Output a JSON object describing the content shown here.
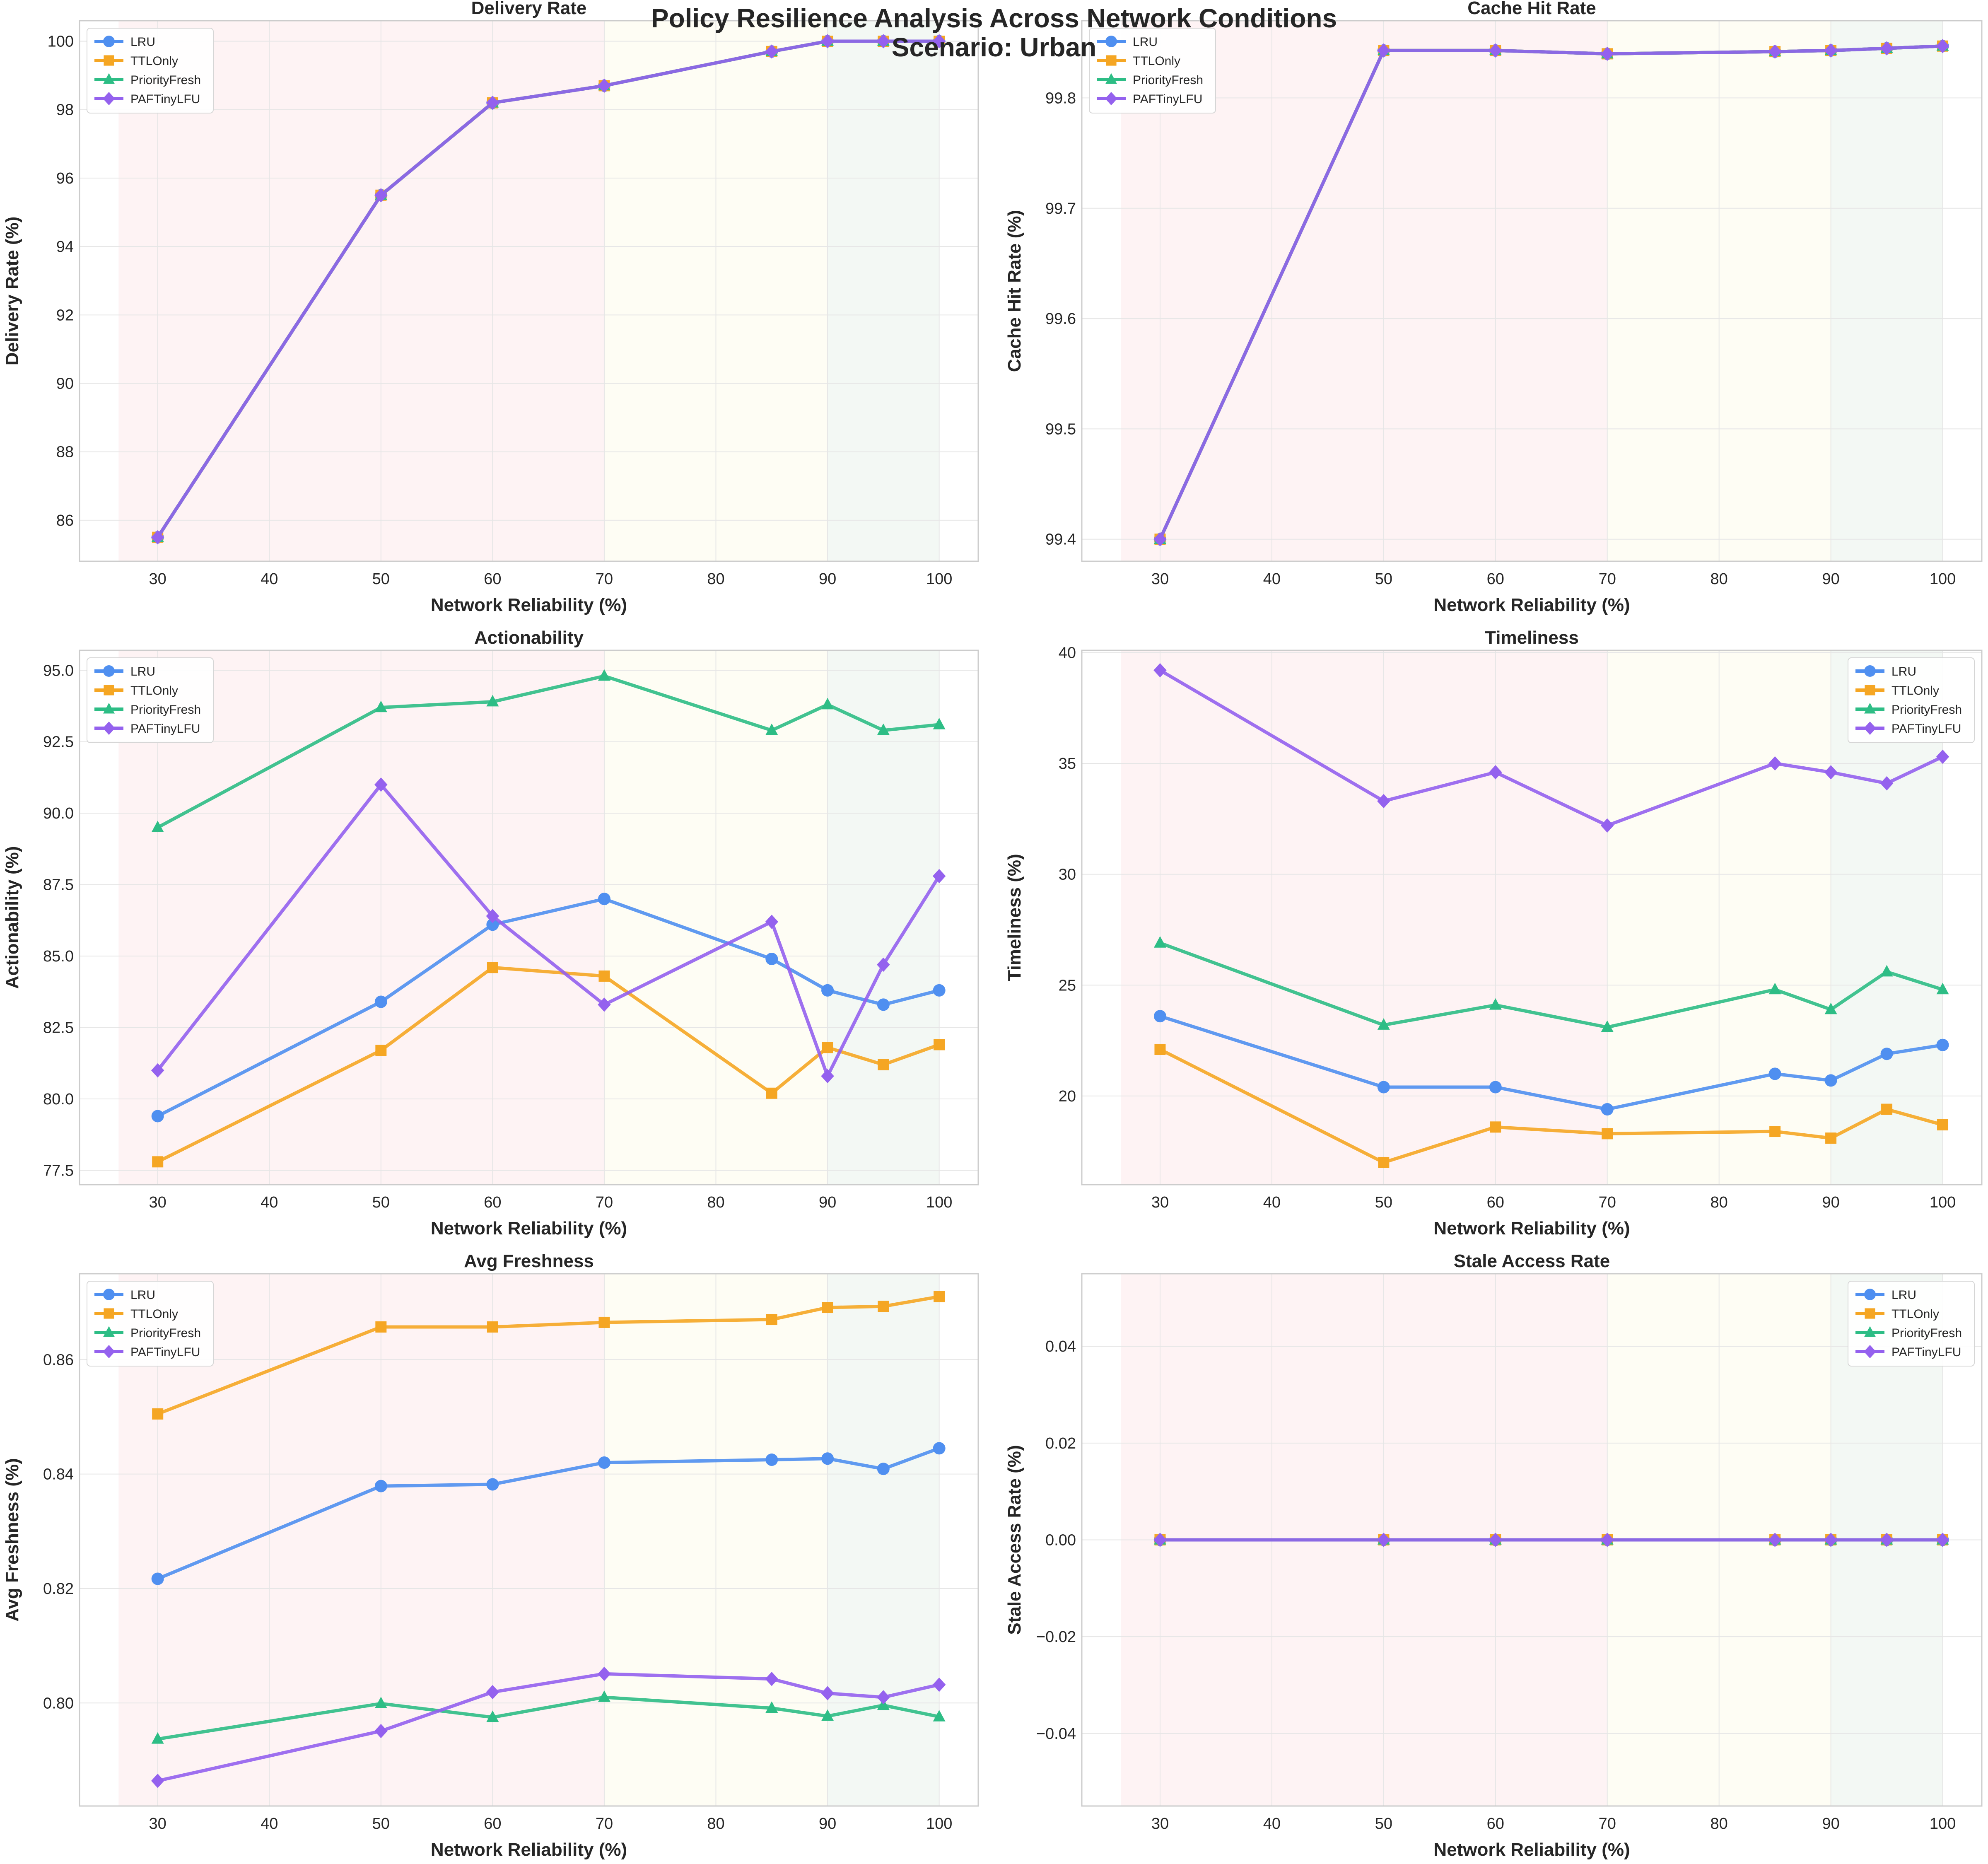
{
  "figure": {
    "title_line1": "Policy Resilience Analysis Across Network Conditions",
    "title_line2": "Scenario: Urban"
  },
  "series_styles": [
    {
      "name": "LRU",
      "color": "#4f8ff0",
      "marker": "circle"
    },
    {
      "name": "TTLOnly",
      "color": "#f5a623",
      "marker": "square"
    },
    {
      "name": "PriorityFresh",
      "color": "#2dbd85",
      "marker": "triangle"
    },
    {
      "name": "PAFTinyLFU",
      "color": "#9461ee",
      "marker": "diamond"
    }
  ],
  "zone_colors": [
    "#fde8ea",
    "#fdfbea",
    "#e7f2ea"
  ],
  "chart_data": [
    {
      "type": "line",
      "title": "Delivery Rate",
      "xlabel": "Network Reliability (%)",
      "ylabel": "Delivery Rate (%)",
      "x": [
        30,
        50,
        60,
        70,
        85,
        90,
        95,
        100
      ],
      "xlim": [
        23,
        103.5
      ],
      "ylim": [
        84.8,
        100.6
      ],
      "xticks": [
        30,
        40,
        50,
        60,
        70,
        80,
        90,
        100
      ],
      "yticks": [
        86,
        88,
        90,
        92,
        94,
        96,
        98,
        100
      ],
      "ytick_labels": [
        "86",
        "88",
        "90",
        "92",
        "94",
        "96",
        "98",
        "100"
      ],
      "zones": [
        [
          26.5,
          70
        ],
        [
          70,
          90
        ],
        [
          90,
          100
        ]
      ],
      "legend": "top-left",
      "series": [
        {
          "name": "LRU",
          "values": [
            85.5,
            95.5,
            98.2,
            98.7,
            99.7,
            100.0,
            100.0,
            100.0
          ]
        },
        {
          "name": "TTLOnly",
          "values": [
            85.5,
            95.5,
            98.2,
            98.7,
            99.7,
            100.0,
            100.0,
            100.0
          ]
        },
        {
          "name": "PriorityFresh",
          "values": [
            85.5,
            95.5,
            98.2,
            98.7,
            99.7,
            100.0,
            100.0,
            100.0
          ]
        },
        {
          "name": "PAFTinyLFU",
          "values": [
            85.5,
            95.5,
            98.2,
            98.7,
            99.7,
            100.0,
            100.0,
            100.0
          ]
        }
      ]
    },
    {
      "type": "line",
      "title": "Cache Hit Rate",
      "xlabel": "Network Reliability (%)",
      "ylabel": "Cache Hit Rate (%)",
      "x": [
        30,
        50,
        60,
        70,
        85,
        90,
        95,
        100
      ],
      "xlim": [
        23,
        103.5
      ],
      "ylim": [
        99.38,
        99.87
      ],
      "xticks": [
        30,
        40,
        50,
        60,
        70,
        80,
        90,
        100
      ],
      "yticks": [
        99.4,
        99.5,
        99.6,
        99.7,
        99.8
      ],
      "ytick_labels": [
        "99.4",
        "99.5",
        "99.6",
        "99.7",
        "99.8"
      ],
      "zones": [
        [
          26.5,
          70
        ],
        [
          70,
          90
        ],
        [
          90,
          100
        ]
      ],
      "legend": "top-left",
      "series": [
        {
          "name": "LRU",
          "values": [
            99.4,
            99.843,
            99.843,
            99.84,
            99.842,
            99.843,
            99.845,
            99.847
          ]
        },
        {
          "name": "TTLOnly",
          "values": [
            99.4,
            99.843,
            99.843,
            99.84,
            99.842,
            99.843,
            99.845,
            99.847
          ]
        },
        {
          "name": "PriorityFresh",
          "values": [
            99.4,
            99.843,
            99.843,
            99.84,
            99.842,
            99.843,
            99.845,
            99.847
          ]
        },
        {
          "name": "PAFTinyLFU",
          "values": [
            99.4,
            99.843,
            99.843,
            99.84,
            99.842,
            99.843,
            99.845,
            99.847
          ]
        }
      ]
    },
    {
      "type": "line",
      "title": "Actionability",
      "xlabel": "Network Reliability (%)",
      "ylabel": "Actionability (%)",
      "x": [
        30,
        50,
        60,
        70,
        85,
        90,
        95,
        100
      ],
      "xlim": [
        23,
        103.5
      ],
      "ylim": [
        77.0,
        95.7
      ],
      "xticks": [
        30,
        40,
        50,
        60,
        70,
        80,
        90,
        100
      ],
      "yticks": [
        77.5,
        80.0,
        82.5,
        85.0,
        87.5,
        90.0,
        92.5,
        95.0
      ],
      "ytick_labels": [
        "77.5",
        "80.0",
        "82.5",
        "85.0",
        "87.5",
        "90.0",
        "92.5",
        "95.0"
      ],
      "zones": [
        [
          26.5,
          70
        ],
        [
          70,
          90
        ],
        [
          90,
          100
        ]
      ],
      "legend": "top-left",
      "series": [
        {
          "name": "LRU",
          "values": [
            79.4,
            83.4,
            86.1,
            87.0,
            84.9,
            83.8,
            83.3,
            83.8
          ]
        },
        {
          "name": "TTLOnly",
          "values": [
            77.8,
            81.7,
            84.6,
            84.3,
            80.2,
            81.8,
            81.2,
            81.9
          ]
        },
        {
          "name": "PriorityFresh",
          "values": [
            89.5,
            93.7,
            93.9,
            94.8,
            92.9,
            93.8,
            92.9,
            93.1
          ]
        },
        {
          "name": "PAFTinyLFU",
          "values": [
            81.0,
            91.0,
            86.4,
            83.3,
            86.2,
            80.8,
            84.7,
            87.8
          ]
        }
      ]
    },
    {
      "type": "line",
      "title": "Timeliness",
      "xlabel": "Network Reliability (%)",
      "ylabel": "Timeliness (%)",
      "x": [
        30,
        50,
        60,
        70,
        85,
        90,
        95,
        100
      ],
      "xlim": [
        23,
        103.5
      ],
      "ylim": [
        16.0,
        40.1
      ],
      "xticks": [
        30,
        40,
        50,
        60,
        70,
        80,
        90,
        100
      ],
      "yticks": [
        20,
        25,
        30,
        35,
        40
      ],
      "ytick_labels": [
        "20",
        "25",
        "30",
        "35",
        "40"
      ],
      "zones": [
        [
          26.5,
          70
        ],
        [
          70,
          90
        ],
        [
          90,
          100
        ]
      ],
      "legend": "top-right",
      "series": [
        {
          "name": "LRU",
          "values": [
            23.6,
            20.4,
            20.4,
            19.4,
            21.0,
            20.7,
            21.9,
            22.3
          ]
        },
        {
          "name": "TTLOnly",
          "values": [
            22.1,
            17.0,
            18.6,
            18.3,
            18.4,
            18.1,
            19.4,
            18.7
          ]
        },
        {
          "name": "PriorityFresh",
          "values": [
            26.9,
            23.2,
            24.1,
            23.1,
            24.8,
            23.9,
            25.6,
            24.8
          ]
        },
        {
          "name": "PAFTinyLFU",
          "values": [
            39.2,
            33.3,
            34.6,
            32.2,
            35.0,
            34.6,
            34.1,
            35.3
          ]
        }
      ]
    },
    {
      "type": "line",
      "title": "Avg Freshness",
      "xlabel": "Network Reliability (%)",
      "ylabel": "Avg Freshness (%)",
      "x": [
        30,
        50,
        60,
        70,
        85,
        90,
        95,
        100
      ],
      "xlim": [
        23,
        103.5
      ],
      "ylim": [
        0.782,
        0.875
      ],
      "xticks": [
        30,
        40,
        50,
        60,
        70,
        80,
        90,
        100
      ],
      "yticks": [
        0.8,
        0.82,
        0.84,
        0.86
      ],
      "ytick_labels": [
        "0.80",
        "0.82",
        "0.84",
        "0.86"
      ],
      "zones": [
        [
          26.5,
          70
        ],
        [
          70,
          90
        ],
        [
          90,
          100
        ]
      ],
      "legend": "top-left",
      "series": [
        {
          "name": "LRU",
          "values": [
            0.8217,
            0.8379,
            0.8382,
            0.842,
            0.8425,
            0.8427,
            0.8409,
            0.8445
          ]
        },
        {
          "name": "TTLOnly",
          "values": [
            0.8505,
            0.8657,
            0.8657,
            0.8665,
            0.867,
            0.8691,
            0.8693,
            0.871
          ]
        },
        {
          "name": "PriorityFresh",
          "values": [
            0.7937,
            0.7999,
            0.7975,
            0.801,
            0.7991,
            0.7977,
            0.7996,
            0.7976
          ]
        },
        {
          "name": "PAFTinyLFU",
          "values": [
            0.7864,
            0.7951,
            0.8019,
            0.8051,
            0.8042,
            0.8017,
            0.801,
            0.8032
          ]
        }
      ]
    },
    {
      "type": "line",
      "title": "Stale Access Rate",
      "xlabel": "Network Reliability (%)",
      "ylabel": "Stale Access Rate (%)",
      "x": [
        30,
        50,
        60,
        70,
        85,
        90,
        95,
        100
      ],
      "xlim": [
        23,
        103.5
      ],
      "ylim": [
        -0.055,
        0.055
      ],
      "xticks": [
        30,
        40,
        50,
        60,
        70,
        80,
        90,
        100
      ],
      "yticks": [
        -0.04,
        -0.02,
        0.0,
        0.02,
        0.04
      ],
      "ytick_labels": [
        "−0.04",
        "−0.02",
        "0.00",
        "0.02",
        "0.04"
      ],
      "zones": [
        [
          26.5,
          70
        ],
        [
          70,
          90
        ],
        [
          90,
          100
        ]
      ],
      "legend": "top-right",
      "series": [
        {
          "name": "LRU",
          "values": [
            0,
            0,
            0,
            0,
            0,
            0,
            0,
            0
          ]
        },
        {
          "name": "TTLOnly",
          "values": [
            0,
            0,
            0,
            0,
            0,
            0,
            0,
            0
          ]
        },
        {
          "name": "PriorityFresh",
          "values": [
            0,
            0,
            0,
            0,
            0,
            0,
            0,
            0
          ]
        },
        {
          "name": "PAFTinyLFU",
          "values": [
            0,
            0,
            0,
            0,
            0,
            0,
            0,
            0
          ]
        }
      ]
    }
  ]
}
